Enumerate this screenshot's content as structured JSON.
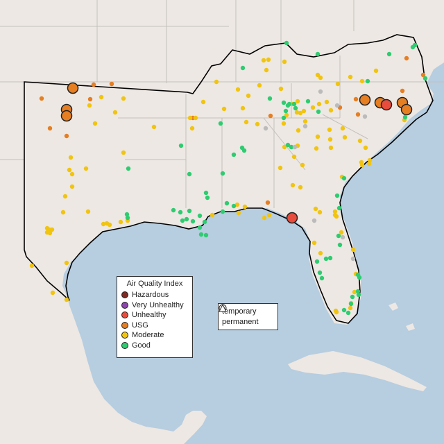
{
  "legend_aqi": {
    "title": "Air Quality Index",
    "items": [
      {
        "label": "Hazardous",
        "color": "#7e2a22"
      },
      {
        "label": "Very Unhealthy",
        "color": "#8e44ad"
      },
      {
        "label": "Unhealthy",
        "color": "#e74c3c"
      },
      {
        "label": "USG",
        "color": "#e67e22"
      },
      {
        "label": "Moderate",
        "color": "#f1c40f"
      },
      {
        "label": "Good",
        "color": "#2ecc71"
      }
    ]
  },
  "legend_monitor_type": {
    "items": [
      {
        "label": "temporary",
        "icon": "circle-icon"
      },
      {
        "label": "permanent",
        "icon": "triangle-icon"
      }
    ]
  },
  "colors": {
    "land": "#ede8e3",
    "ocean": "#b7cde0",
    "state_border": "#c4bfbb",
    "region_outline": "#000000",
    "other_monitor": "#bbbbbb"
  }
}
